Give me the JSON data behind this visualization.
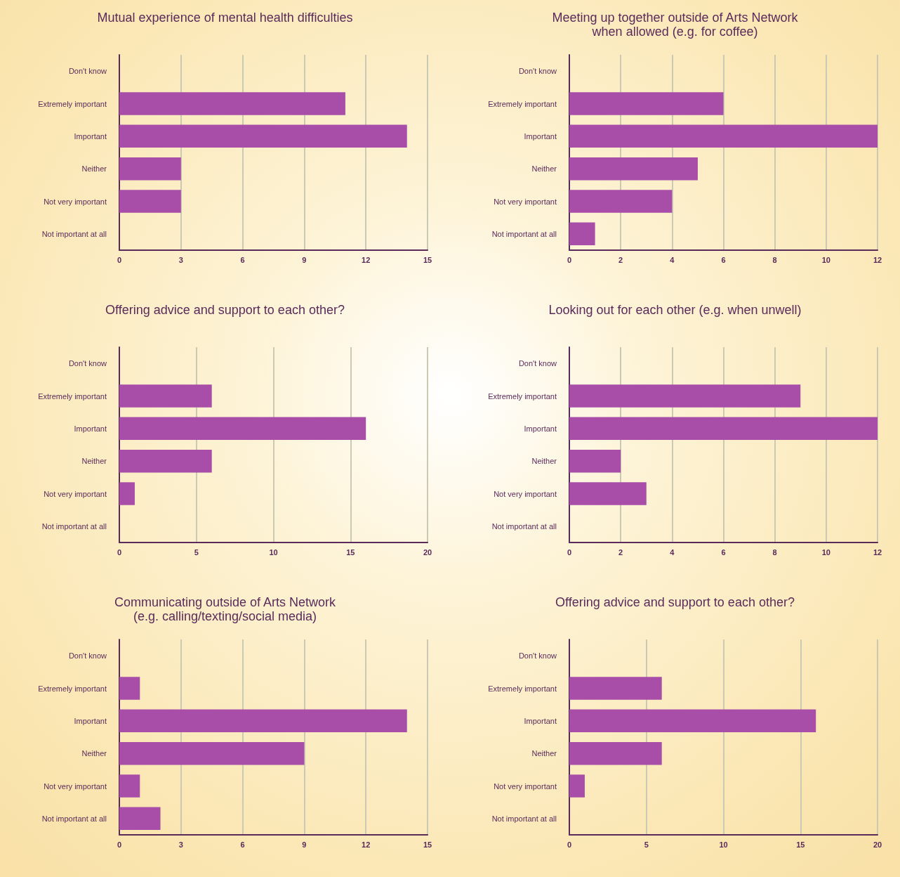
{
  "chart_data": [
    {
      "type": "bar",
      "orientation": "horizontal",
      "title": "Mutual experience of mental health difficulties",
      "categories": [
        "Don't know",
        "Extremely important",
        "Important",
        "Neither",
        "Not very important",
        "Not important at all"
      ],
      "values": [
        0,
        11,
        14,
        3,
        3,
        0
      ],
      "color": "#a84ea8",
      "xlim": [
        0,
        15
      ],
      "xticks": [
        0,
        3,
        6,
        9,
        12,
        15
      ],
      "grid": "x"
    },
    {
      "type": "bar",
      "orientation": "horizontal",
      "title": "Meeting up together outside of Arts Network\nwhen allowed (e.g. for coffee)",
      "categories": [
        "Don't know",
        "Extremely important",
        "Important",
        "Neither",
        "Not very important",
        "Not important at all"
      ],
      "values": [
        0,
        6,
        12,
        5,
        4,
        1
      ],
      "color": "#a84ea8",
      "xlim": [
        0,
        12
      ],
      "xticks": [
        0,
        2,
        4,
        6,
        8,
        10,
        12
      ],
      "grid": "x"
    },
    {
      "type": "bar",
      "orientation": "horizontal",
      "title": "Offering advice and support to each other?",
      "categories": [
        "Don't know",
        "Extremely important",
        "Important",
        "Neither",
        "Not very important",
        "Not important at all"
      ],
      "values": [
        0,
        6,
        16,
        6,
        1,
        0
      ],
      "color": "#a84ea8",
      "xlim": [
        0,
        20
      ],
      "xticks": [
        0,
        5,
        10,
        15,
        20
      ],
      "grid": "x"
    },
    {
      "type": "bar",
      "orientation": "horizontal",
      "title": "Looking out for each other (e.g. when unwell)",
      "categories": [
        "Don't know",
        "Extremely important",
        "Important",
        "Neither",
        "Not very important",
        "Not important at all"
      ],
      "values": [
        0,
        9,
        12,
        2,
        3,
        0
      ],
      "color": "#a84ea8",
      "xlim": [
        0,
        12
      ],
      "xticks": [
        0,
        2,
        4,
        6,
        8,
        10,
        12
      ],
      "grid": "x"
    },
    {
      "type": "bar",
      "orientation": "horizontal",
      "title": "Communicating outside of Arts Network\n(e.g. calling/texting/social media)",
      "categories": [
        "Don't know",
        "Extremely important",
        "Important",
        "Neither",
        "Not very important",
        "Not important at all"
      ],
      "values": [
        0,
        1,
        14,
        9,
        1,
        2
      ],
      "color": "#a84ea8",
      "xlim": [
        0,
        15
      ],
      "xticks": [
        0,
        3,
        6,
        9,
        12,
        15
      ],
      "grid": "x"
    },
    {
      "type": "bar",
      "orientation": "horizontal",
      "title": "Offering advice and support to each other?",
      "categories": [
        "Don't know",
        "Extremely important",
        "Important",
        "Neither",
        "Not very important",
        "Not important at all"
      ],
      "values": [
        0,
        6,
        16,
        6,
        1,
        0
      ],
      "color": "#a84ea8",
      "xlim": [
        0,
        20
      ],
      "xticks": [
        0,
        5,
        10,
        15,
        20
      ],
      "grid": "x"
    }
  ]
}
